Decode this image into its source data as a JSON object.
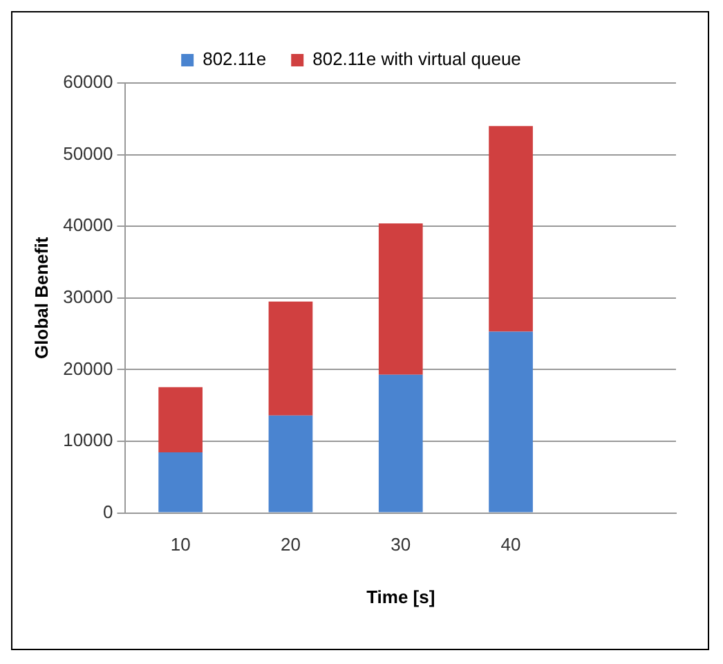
{
  "chart_data": {
    "type": "bar",
    "stacked": true,
    "xlabel": "Time [s]",
    "ylabel": "Global Benefit",
    "categories": [
      "10",
      "20",
      "30",
      "40",
      null
    ],
    "series": [
      {
        "name": "802.11e",
        "color": "#4a84d0",
        "values": [
          8450,
          13600,
          19300,
          25300,
          null
        ]
      },
      {
        "name": "802.11e with virtual queue",
        "color": "#d04040",
        "values": [
          9100,
          15900,
          21100,
          28700,
          null
        ]
      }
    ],
    "ylim": [
      0,
      60000
    ],
    "yticks": [
      0,
      10000,
      20000,
      30000,
      40000,
      50000,
      60000
    ],
    "grid": "y",
    "legend": "top"
  }
}
